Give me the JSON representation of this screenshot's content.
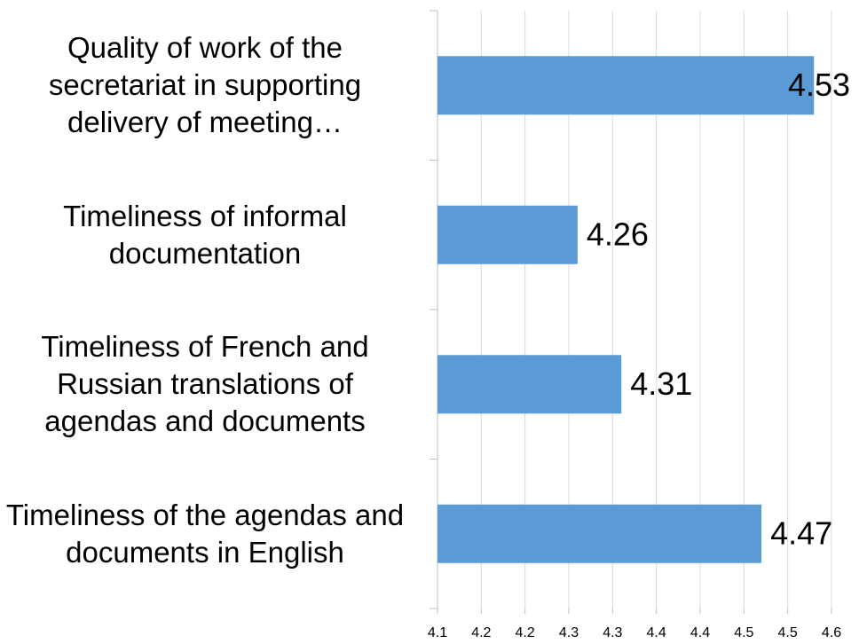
{
  "chart_data": {
    "type": "barh",
    "categories": [
      "Quality of work of the secretariat in supporting delivery of meeting…",
      "Timeliness of informal documentation",
      "Timeliness of French and Russian translations of agendas and documents",
      "Timeliness of the agendas and documents in English"
    ],
    "values": [
      4.53,
      4.26,
      4.31,
      4.47
    ],
    "color": "#5b9bd5",
    "xlim": [
      4.1,
      4.55
    ],
    "xticks": [
      4.1,
      {
        "value": 4.15,
        "label": "4.2"
      },
      4.2,
      {
        "value": 4.25,
        "label": "4.3"
      },
      4.3,
      {
        "value": 4.35,
        "label": "4.4"
      },
      4.4,
      {
        "value": 4.45,
        "label": "4.5"
      },
      4.5,
      {
        "value": 4.55,
        "label": "4.6"
      }
    ],
    "grid": true
  }
}
